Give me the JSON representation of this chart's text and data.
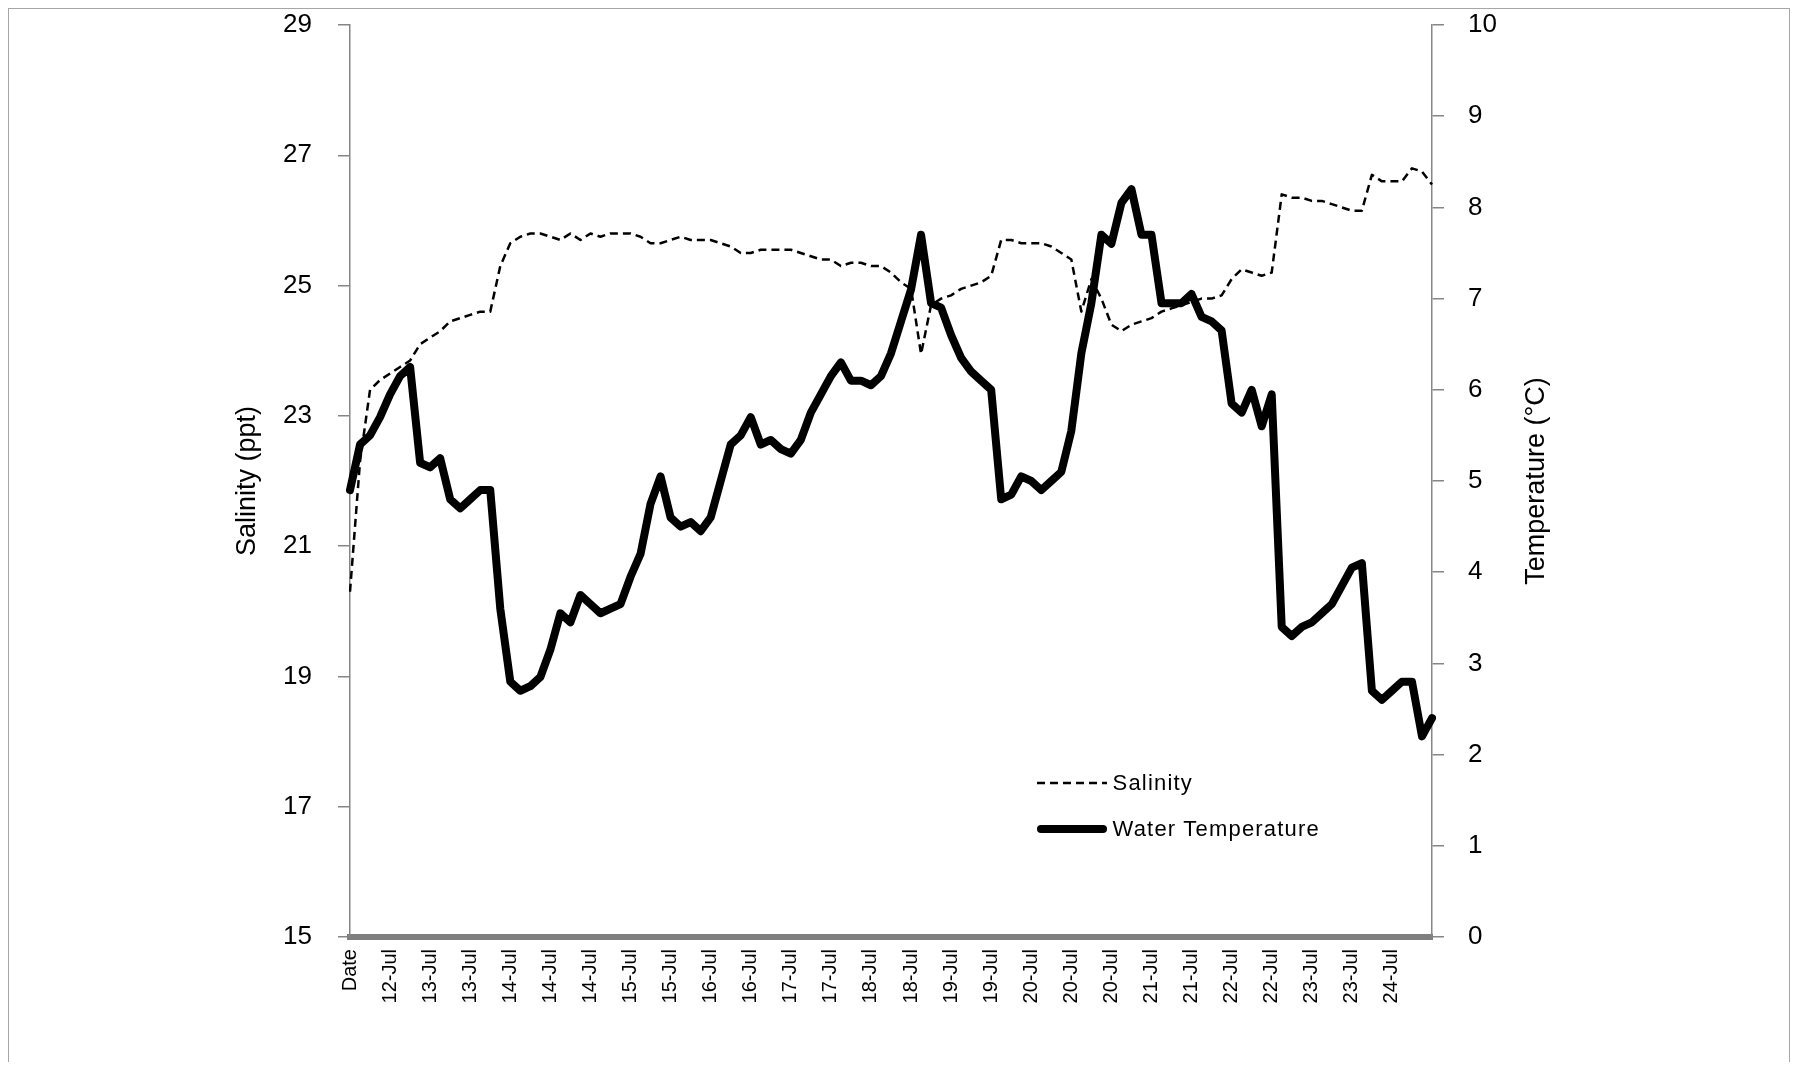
{
  "chart_data": {
    "type": "line",
    "categories": [
      "Date",
      null,
      null,
      null,
      "12-Jul",
      null,
      null,
      null,
      "13-Jul",
      null,
      null,
      null,
      "13-Jul",
      null,
      null,
      null,
      "14-Jul",
      null,
      null,
      null,
      "14-Jul",
      null,
      null,
      null,
      "14-Jul",
      null,
      null,
      null,
      "15-Jul",
      null,
      null,
      null,
      "15-Jul",
      null,
      null,
      null,
      "16-Jul",
      null,
      null,
      null,
      "16-Jul",
      null,
      null,
      null,
      "17-Jul",
      null,
      null,
      null,
      "17-Jul",
      null,
      null,
      null,
      "18-Jul",
      null,
      null,
      null,
      "18-Jul",
      null,
      null,
      null,
      "19-Jul",
      null,
      null,
      null,
      "19-Jul",
      null,
      null,
      null,
      "20-Jul",
      null,
      null,
      null,
      "20-Jul",
      null,
      null,
      null,
      "20-Jul",
      null,
      null,
      null,
      "21-Jul",
      null,
      null,
      null,
      "21-Jul",
      null,
      null,
      null,
      "22-Jul",
      null,
      null,
      null,
      "22-Jul",
      null,
      null,
      null,
      "23-Jul",
      null,
      null,
      null,
      "23-Jul",
      null,
      null,
      null,
      "24-Jul",
      null,
      null,
      null,
      null
    ],
    "series": [
      {
        "name": "Salinity",
        "color": "#000000",
        "line_style": "dashed",
        "values": [
          20.3,
          22.3,
          23.4,
          23.55,
          23.65,
          23.75,
          23.85,
          24.1,
          24.2,
          24.3,
          24.45,
          24.5,
          24.55,
          24.6,
          24.6,
          25.3,
          25.65,
          25.75,
          25.8,
          25.8,
          25.75,
          25.7,
          25.8,
          25.7,
          25.8,
          25.75,
          25.8,
          25.8,
          25.8,
          25.75,
          25.65,
          25.65,
          25.7,
          25.75,
          25.7,
          25.7,
          25.7,
          25.65,
          25.6,
          25.5,
          25.5,
          25.55,
          25.55,
          25.55,
          25.55,
          25.5,
          25.45,
          25.4,
          25.4,
          25.3,
          25.35,
          25.35,
          25.3,
          25.3,
          25.2,
          25.05,
          24.95,
          23.95,
          24.7,
          24.8,
          24.85,
          24.95,
          25.0,
          25.05,
          25.15,
          25.7,
          25.7,
          25.65,
          25.65,
          25.65,
          25.6,
          25.5,
          25.4,
          24.6,
          25.1,
          24.8,
          24.4,
          24.3,
          24.4,
          24.45,
          24.5,
          24.6,
          24.65,
          24.7,
          24.75,
          24.8,
          24.8,
          24.85,
          25.1,
          25.25,
          25.2,
          25.15,
          25.2,
          26.4,
          26.35,
          26.35,
          26.3,
          26.3,
          26.25,
          26.2,
          26.15,
          26.15,
          26.7,
          26.6,
          26.6,
          26.6,
          26.8,
          26.75,
          26.55
        ]
      },
      {
        "name": "Water Temperature",
        "color": "#000000",
        "line_style": "solid",
        "axis": "y2",
        "values": [
          4.9,
          5.4,
          5.5,
          5.7,
          5.95,
          6.15,
          6.25,
          5.2,
          5.15,
          5.25,
          4.8,
          4.7,
          4.8,
          4.9,
          4.9,
          3.6,
          2.8,
          2.7,
          2.75,
          2.85,
          3.15,
          3.55,
          3.45,
          3.75,
          3.65,
          3.55,
          3.6,
          3.65,
          3.95,
          4.2,
          4.75,
          5.05,
          4.6,
          4.5,
          4.55,
          4.45,
          4.6,
          5.0,
          5.4,
          5.5,
          5.7,
          5.4,
          5.45,
          5.35,
          5.3,
          5.45,
          5.75,
          5.95,
          6.15,
          6.3,
          6.1,
          6.1,
          6.05,
          6.15,
          6.4,
          6.75,
          7.1,
          7.7,
          6.95,
          6.9,
          6.6,
          6.35,
          6.2,
          6.1,
          6.0,
          4.8,
          4.85,
          5.05,
          5.0,
          4.9,
          5.0,
          5.1,
          5.55,
          6.4,
          6.95,
          7.7,
          7.6,
          8.05,
          8.2,
          7.7,
          7.7,
          6.95,
          6.95,
          6.95,
          7.05,
          6.8,
          6.75,
          6.65,
          5.85,
          5.75,
          6.0,
          5.6,
          5.95,
          3.4,
          3.3,
          3.4,
          3.45,
          3.55,
          3.65,
          3.85,
          4.05,
          4.1,
          2.7,
          2.6,
          2.7,
          2.8,
          2.8,
          2.2,
          2.4
        ]
      }
    ],
    "ylabel": "Salinity (ppt)",
    "y2label": "Temperature (°C)",
    "ylim": [
      15,
      29
    ],
    "yticks": [
      15,
      17,
      19,
      21,
      23,
      25,
      27,
      29
    ],
    "y2lim": [
      0,
      10
    ],
    "y2ticks": [
      0,
      1,
      2,
      3,
      4,
      5,
      6,
      7,
      8,
      9,
      10
    ],
    "legend": "bottom right",
    "grid": false
  }
}
